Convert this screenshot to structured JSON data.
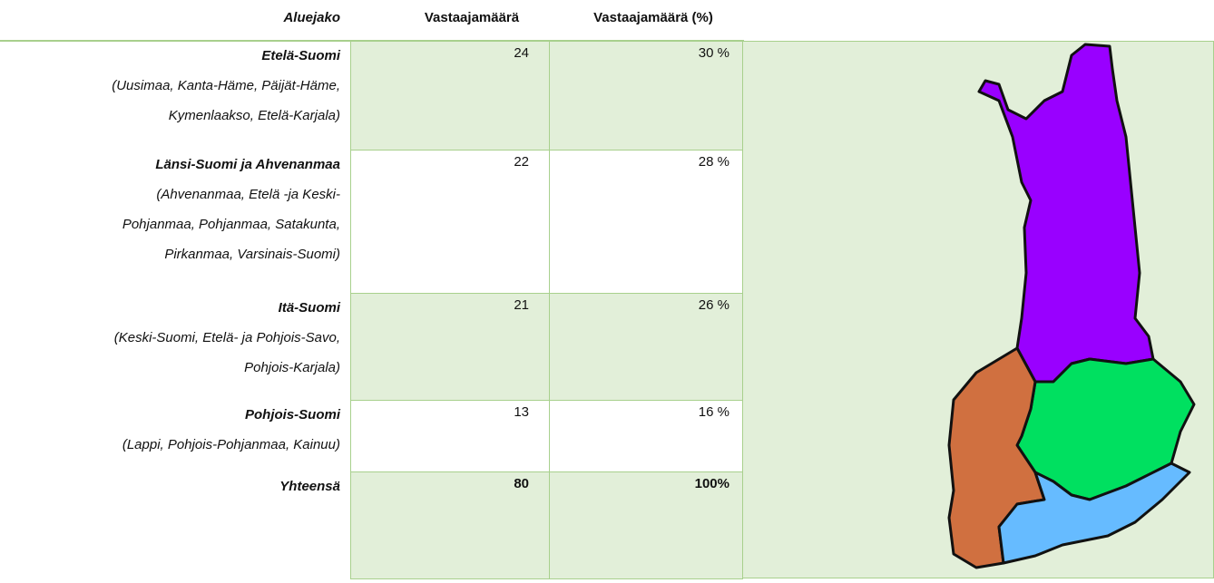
{
  "table": {
    "header": [
      "Aluejako",
      "Vastaajamäärä",
      "Vastaajamäärä (%)"
    ],
    "rows": [
      {
        "region": "Etelä-Suomi",
        "details": [
          "(Uusimaa, Kanta-Häme, Päijät-Häme,",
          "Kymenlaakso, Etelä-Karjala)"
        ],
        "count": 24,
        "percent": "30 %"
      },
      {
        "region": "Länsi-Suomi ja Ahvenanmaa",
        "details": [
          "(Ahvenanmaa, Etelä -ja Keski-",
          "Pohjanmaa, Pohjanmaa, Satakunta,",
          "Pirkanmaa, Varsinais-Suomi)"
        ],
        "count": 22,
        "percent": "28 %"
      },
      {
        "region": "Itä-Suomi",
        "details": [
          "(Keski-Suomi, Etelä- ja Pohjois-Savo,",
          "Pohjois-Karjala)"
        ],
        "count": 21,
        "percent": "26 %"
      },
      {
        "region": "Pohjois-Suomi",
        "details": [
          "(Lappi, Pohjois-Pohjanmaa, Kainuu)"
        ],
        "count": 13,
        "percent": "16 %"
      },
      {
        "region": "Yhteensä",
        "details": [],
        "count": 80,
        "percent": "100%"
      }
    ]
  }
}
